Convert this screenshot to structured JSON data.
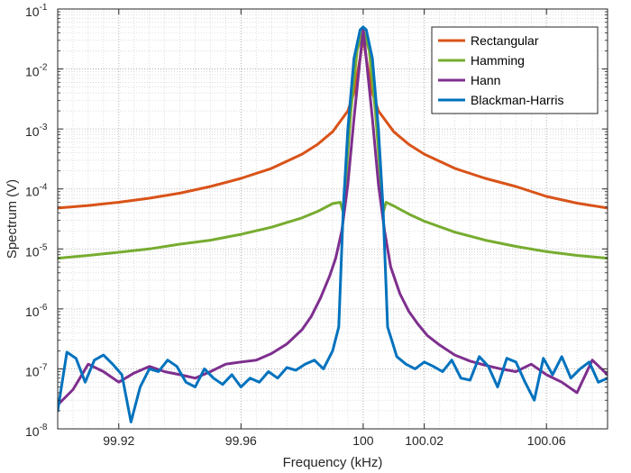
{
  "chart_data": {
    "type": "line",
    "title": "",
    "xlabel": "Frequency  (kHz)",
    "ylabel": "Spectrum  (V)",
    "xscale": "linear",
    "yscale": "log",
    "xlim": [
      99.9,
      100.08
    ],
    "ylim": [
      1e-08,
      0.1
    ],
    "xticks": [
      99.92,
      99.96,
      100,
      100.02,
      100.06
    ],
    "xtick_labels": [
      "99.92",
      "99.96",
      "100",
      "100.02",
      "100.06"
    ],
    "ytick_exponents": [
      "-8",
      "-7",
      "-6",
      "-5",
      "-4",
      "-3",
      "-2",
      "-1"
    ],
    "ytick_base": "10",
    "grid": "major and minor, dotted",
    "legend_position": "top-right",
    "series": [
      {
        "name": "Rectangular",
        "color": "#D95319",
        "x": [
          99.9,
          99.91,
          99.92,
          99.93,
          99.94,
          99.95,
          99.96,
          99.97,
          99.98,
          99.985,
          99.99,
          99.995,
          99.997,
          99.999,
          100,
          100.001,
          100.003,
          100.005,
          100.01,
          100.015,
          100.02,
          100.03,
          100.04,
          100.05,
          100.06,
          100.07,
          100.08
        ],
        "y": [
          4.8e-05,
          5.3e-05,
          6e-05,
          7e-05,
          8.5e-05,
          0.00011,
          0.00015,
          0.00022,
          0.00038,
          0.00055,
          0.0009,
          0.002,
          0.004,
          0.015,
          0.035,
          0.015,
          0.004,
          0.002,
          0.0009,
          0.00055,
          0.00038,
          0.00022,
          0.00015,
          0.00011,
          7.5e-05,
          5.8e-05,
          4.8e-05
        ]
      },
      {
        "name": "Hamming",
        "color": "#77AC30",
        "x": [
          99.9,
          99.91,
          99.92,
          99.93,
          99.94,
          99.95,
          99.96,
          99.97,
          99.98,
          99.985,
          99.99,
          99.9925,
          99.9935,
          99.9945,
          99.996,
          99.998,
          100,
          100.002,
          100.004,
          100.0055,
          100.0065,
          100.0075,
          100.01,
          100.015,
          100.02,
          100.03,
          100.04,
          100.05,
          100.06,
          100.07,
          100.08
        ],
        "y": [
          7e-06,
          7.8e-06,
          8.8e-06,
          1e-05,
          1.2e-05,
          1.4e-05,
          1.75e-05,
          2.3e-05,
          3.3e-05,
          4.2e-05,
          5.7e-05,
          6e-05,
          4e-05,
          0.0002,
          0.002,
          0.02,
          0.045,
          0.02,
          0.002,
          0.0002,
          4e-05,
          6e-05,
          5.2e-05,
          3.8e-05,
          2.9e-05,
          1.9e-05,
          1.4e-05,
          1.1e-05,
          9e-06,
          7.8e-06,
          7e-06
        ]
      },
      {
        "name": "Hann",
        "color": "#7E2F8E",
        "x": [
          99.9,
          99.905,
          99.91,
          99.915,
          99.92,
          99.925,
          99.93,
          99.935,
          99.94,
          99.945,
          99.95,
          99.955,
          99.96,
          99.965,
          99.97,
          99.975,
          99.98,
          99.983,
          99.986,
          99.989,
          99.991,
          99.993,
          99.995,
          99.997,
          99.999,
          100,
          100.001,
          100.003,
          100.005,
          100.007,
          100.009,
          100.012,
          100.015,
          100.018,
          100.021,
          100.025,
          100.03,
          100.035,
          100.04,
          100.045,
          100.05,
          100.055,
          100.06,
          100.065,
          100.07,
          100.075,
          100.08
        ],
        "y": [
          2.5e-08,
          4.5e-08,
          1.2e-07,
          9e-08,
          6e-08,
          8.5e-08,
          1.1e-07,
          9e-08,
          8e-08,
          7e-08,
          9e-08,
          1.2e-07,
          1.3e-07,
          1.4e-07,
          1.8e-07,
          2.6e-07,
          4.5e-07,
          7.5e-07,
          1.5e-06,
          3.5e-06,
          7e-06,
          2e-05,
          0.00012,
          0.0015,
          0.015,
          0.045,
          0.015,
          0.0015,
          0.00012,
          2e-05,
          5e-06,
          1.8e-06,
          9e-07,
          5.5e-07,
          3.6e-07,
          2.5e-07,
          1.7e-07,
          1.35e-07,
          1.15e-07,
          1e-07,
          9e-08,
          1.2e-07,
          8e-08,
          6e-08,
          4e-08,
          1.4e-07,
          8e-08
        ]
      },
      {
        "name": "Blackman-Harris",
        "color": "#0072BD",
        "x": [
          99.9,
          99.903,
          99.906,
          99.909,
          99.912,
          99.915,
          99.918,
          99.921,
          99.924,
          99.927,
          99.93,
          99.933,
          99.936,
          99.939,
          99.942,
          99.945,
          99.948,
          99.951,
          99.954,
          99.957,
          99.96,
          99.963,
          99.966,
          99.969,
          99.972,
          99.975,
          99.978,
          99.981,
          99.984,
          99.987,
          99.99,
          99.992,
          99.9935,
          99.995,
          99.997,
          99.999,
          100,
          100.001,
          100.003,
          100.005,
          100.0065,
          100.008,
          100.011,
          100.014,
          100.017,
          100.02,
          100.023,
          100.026,
          100.029,
          100.032,
          100.035,
          100.038,
          100.041,
          100.044,
          100.047,
          100.05,
          100.053,
          100.056,
          100.059,
          100.062,
          100.065,
          100.068,
          100.071,
          100.074,
          100.077,
          100.08
        ],
        "y": [
          2e-08,
          1.9e-07,
          1.5e-07,
          6e-08,
          1.4e-07,
          1.7e-07,
          1.2e-07,
          8e-08,
          1.3e-08,
          5e-08,
          1e-07,
          9e-08,
          1.4e-07,
          1.1e-07,
          6e-08,
          5e-08,
          1e-07,
          7e-08,
          5.5e-08,
          8e-08,
          5e-08,
          7e-08,
          6e-08,
          9e-08,
          7e-08,
          1.05e-07,
          9.5e-08,
          1.2e-07,
          1.4e-07,
          1e-07,
          2e-07,
          5e-07,
          5e-05,
          0.001,
          0.015,
          0.045,
          0.05,
          0.045,
          0.015,
          0.001,
          5e-05,
          5e-07,
          1.6e-07,
          1.2e-07,
          1e-07,
          1.3e-07,
          1.1e-07,
          9e-08,
          1.4e-07,
          7e-08,
          6.5e-08,
          1.6e-07,
          1.1e-07,
          5e-08,
          1.5e-07,
          1.3e-07,
          6e-08,
          3e-08,
          1.5e-07,
          8e-08,
          1.6e-07,
          7e-08,
          1e-07,
          1.3e-07,
          6e-08,
          7e-08
        ]
      }
    ]
  }
}
